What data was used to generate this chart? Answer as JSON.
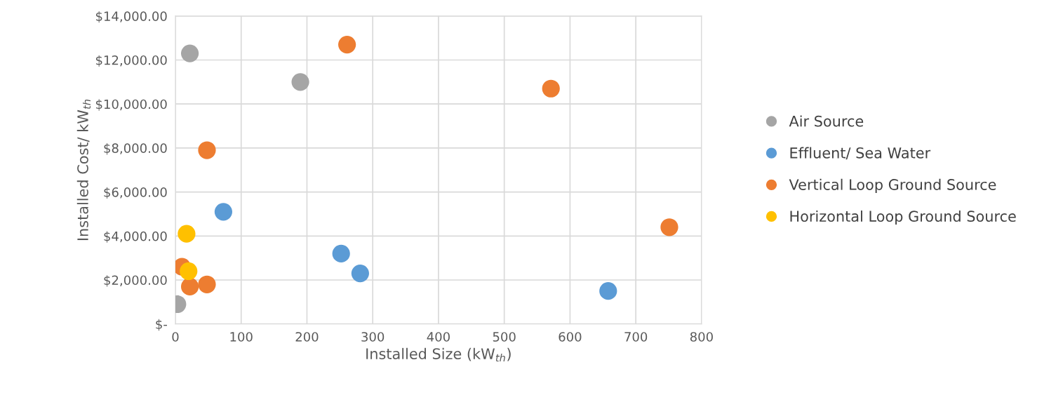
{
  "chart_data": {
    "type": "scatter",
    "xlabel": "Installed Size (kW$_{th}$)",
    "ylabel": "Installed Cost/ kW$_{th}$",
    "xlim": [
      0,
      800
    ],
    "xticks": [
      0,
      100,
      200,
      300,
      400,
      500,
      600,
      700,
      800
    ],
    "ylim": [
      0,
      14000
    ],
    "yticks": [
      {
        "value": 0,
        "label": "$-"
      },
      {
        "value": 2000,
        "label": "$2,000.00"
      },
      {
        "value": 4000,
        "label": "$4,000.00"
      },
      {
        "value": 6000,
        "label": "$6,000.00"
      },
      {
        "value": 8000,
        "label": "$8,000.00"
      },
      {
        "value": 10000,
        "label": "$10,000.00"
      },
      {
        "value": 12000,
        "label": "$12,000.00"
      },
      {
        "value": 14000,
        "label": "$14,000.00"
      }
    ],
    "grid": true,
    "legend": "right",
    "marker": "circle",
    "series": [
      {
        "name": "Air Source",
        "color": "#a5a5a5",
        "x": [
          22,
          190,
          3
        ],
        "values": [
          12300,
          11000,
          900
        ]
      },
      {
        "name": "Effluent/ Sea Water",
        "color": "#5b9bd5",
        "x": [
          73,
          252,
          281,
          658
        ],
        "values": [
          5100,
          3200,
          2300,
          1500
        ]
      },
      {
        "name": "Vertical Loop Ground Source",
        "color": "#ed7d31",
        "x": [
          261,
          571,
          48,
          751,
          10,
          22,
          48
        ],
        "values": [
          12700,
          10700,
          7900,
          4400,
          2600,
          1700,
          1800
        ]
      },
      {
        "name": "Horizontal Loop Ground Source",
        "color": "#ffc000",
        "x": [
          17,
          20
        ],
        "values": [
          4100,
          2400
        ]
      }
    ]
  }
}
